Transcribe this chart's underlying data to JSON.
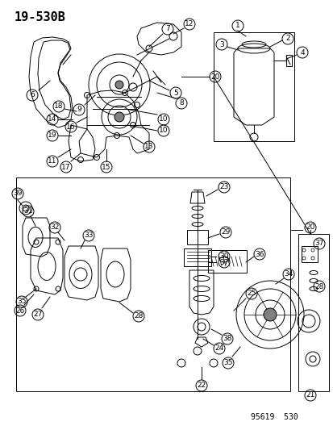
{
  "title": "19-530B",
  "footer": "95619  530",
  "bg_color": "#ffffff",
  "title_fontsize": 11,
  "footer_fontsize": 7,
  "diagram_color": "#000000",
  "label_fontsize": 6.5
}
